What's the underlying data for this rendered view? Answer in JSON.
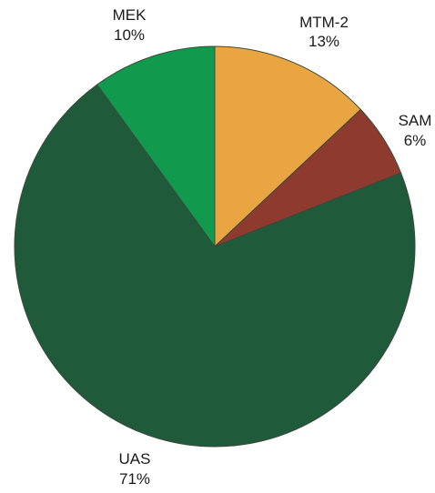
{
  "chart_data": {
    "type": "pie",
    "title": "",
    "slices": [
      {
        "label": "MTM-2",
        "value": 13,
        "value_label": "13%",
        "color": "#E9A541"
      },
      {
        "label": "SAM",
        "value": 6,
        "value_label": "6%",
        "color": "#8F3A2E"
      },
      {
        "label": "UAS",
        "value": 71,
        "value_label": "71%",
        "color": "#1F5A3A"
      },
      {
        "label": "MEK",
        "value": 10,
        "value_label": "10%",
        "color": "#119A4E"
      }
    ]
  }
}
